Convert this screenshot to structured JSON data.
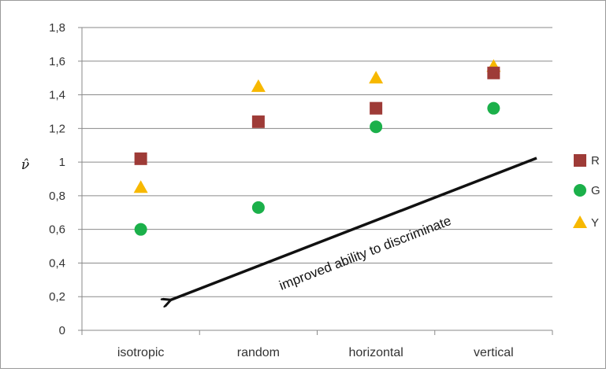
{
  "chart_data": {
    "type": "scatter",
    "categories": [
      "isotropic",
      "random",
      "horizontal",
      "vertical"
    ],
    "series": [
      {
        "name": "R",
        "marker": "square",
        "color": "#9e3b37",
        "values": [
          1.02,
          1.24,
          1.32,
          1.53
        ]
      },
      {
        "name": "G",
        "marker": "circle",
        "color": "#1bb04a",
        "values": [
          0.6,
          0.73,
          1.21,
          1.32
        ]
      },
      {
        "name": "Y",
        "marker": "triangle",
        "color": "#f7b800",
        "values": [
          0.85,
          1.45,
          1.5,
          1.57
        ]
      }
    ],
    "ylabel": "ν̂",
    "ylim": [
      0,
      1.8
    ],
    "yticks": [
      0,
      0.2,
      0.4,
      0.6,
      0.8,
      1,
      1.2,
      1.4,
      1.6,
      1.8
    ],
    "ytick_labels": [
      "0",
      "0,2",
      "0,4",
      "0,6",
      "0,8",
      "1",
      "1,2",
      "1,4",
      "1,6",
      "1,8"
    ],
    "grid": true,
    "legend": "right",
    "annotation": {
      "text": "improved ability to discriminate",
      "arrow_direction": "down-left"
    }
  }
}
